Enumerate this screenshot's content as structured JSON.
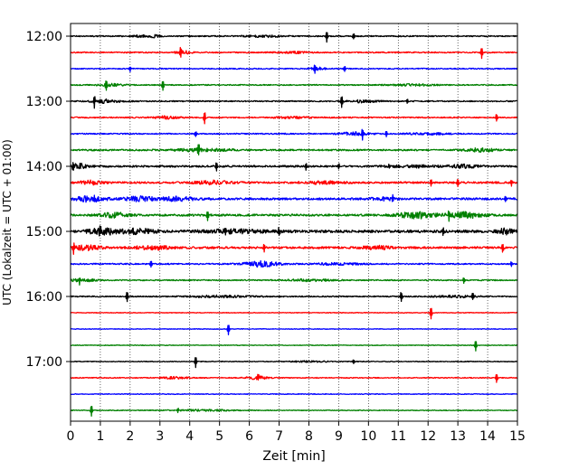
{
  "chart_data": {
    "type": "line",
    "xlabel": "Zeit  [min]",
    "ylabel": "UTC (Lokalzeit = UTC + 01:00)",
    "xlim": [
      0,
      15
    ],
    "x_ticks": [
      0,
      1,
      2,
      3,
      4,
      5,
      6,
      7,
      8,
      9,
      10,
      11,
      12,
      13,
      14,
      15
    ],
    "x_tick_labels": [
      "0",
      "1",
      "2",
      "3",
      "4",
      "5",
      "6",
      "7",
      "8",
      "9",
      "10",
      "11",
      "12",
      "13",
      "14",
      "15"
    ],
    "x_grid": "dotted vertical lines at each minute",
    "y_tick_labels": [
      "12:00",
      "13:00",
      "14:00",
      "15:00",
      "16:00",
      "17:00"
    ],
    "y_tick_rows": [
      0,
      4,
      8,
      12,
      16,
      20
    ],
    "row_interval_minutes": 15,
    "row_colors": [
      "#000000",
      "#ff0000",
      "#0000ff",
      "#008000"
    ],
    "rows": [
      {
        "start": "12:00",
        "color": "#000000",
        "base_noise": 0.2,
        "bursts": [
          [
            2.6,
            0.8,
            0.5
          ],
          [
            6.5,
            1.2,
            0.3
          ]
        ],
        "spikes": [
          [
            8.6,
            0.9
          ],
          [
            9.5,
            0.5
          ]
        ]
      },
      {
        "start": "12:15",
        "color": "#ff0000",
        "base_noise": 0.2,
        "bursts": [
          [
            3.8,
            0.5,
            0.5
          ],
          [
            7.5,
            1.0,
            0.3
          ]
        ],
        "spikes": [
          [
            3.7,
            1.0
          ],
          [
            13.8,
            0.9
          ]
        ]
      },
      {
        "start": "12:30",
        "color": "#0000ff",
        "base_noise": 0.18,
        "bursts": [
          [
            8.3,
            0.6,
            0.4
          ]
        ],
        "spikes": [
          [
            8.2,
            0.9
          ],
          [
            9.2,
            0.5
          ],
          [
            2.0,
            0.4
          ]
        ]
      },
      {
        "start": "12:45",
        "color": "#008000",
        "base_noise": 0.18,
        "bursts": [
          [
            1.4,
            0.8,
            0.4
          ],
          [
            11.5,
            1.5,
            0.3
          ]
        ],
        "spikes": [
          [
            1.2,
            0.7
          ],
          [
            3.1,
            0.8
          ]
        ]
      },
      {
        "start": "13:00",
        "color": "#000000",
        "base_noise": 0.2,
        "bursts": [
          [
            1.2,
            1.0,
            0.6
          ],
          [
            9.8,
            1.0,
            0.4
          ]
        ],
        "spikes": [
          [
            0.8,
            0.9
          ],
          [
            9.1,
            0.9
          ],
          [
            11.3,
            0.4
          ]
        ]
      },
      {
        "start": "13:15",
        "color": "#ff0000",
        "base_noise": 0.2,
        "bursts": [
          [
            3.2,
            0.8,
            0.5
          ],
          [
            7.5,
            1.2,
            0.3
          ]
        ],
        "spikes": [
          [
            4.5,
            1.0
          ],
          [
            14.3,
            0.6
          ]
        ]
      },
      {
        "start": "13:30",
        "color": "#0000ff",
        "base_noise": 0.2,
        "bursts": [
          [
            9.5,
            1.0,
            0.5
          ],
          [
            12.0,
            1.5,
            0.3
          ]
        ],
        "spikes": [
          [
            9.8,
            0.9
          ],
          [
            10.6,
            0.5
          ],
          [
            4.2,
            0.4
          ]
        ]
      },
      {
        "start": "13:45",
        "color": "#008000",
        "base_noise": 0.25,
        "bursts": [
          [
            4.5,
            2.0,
            0.5
          ],
          [
            13.8,
            1.0,
            0.6
          ]
        ],
        "spikes": [
          [
            4.3,
            0.8
          ]
        ]
      },
      {
        "start": "14:00",
        "color": "#000000",
        "base_noise": 0.3,
        "bursts": [
          [
            0.3,
            0.6,
            0.8
          ],
          [
            11.5,
            1.5,
            0.4
          ],
          [
            13.2,
            1.0,
            0.5
          ]
        ],
        "spikes": [
          [
            0.1,
            0.8
          ],
          [
            4.9,
            0.6
          ],
          [
            7.9,
            0.6
          ],
          [
            9.0,
            0.5
          ],
          [
            10.7,
            0.4
          ]
        ]
      },
      {
        "start": "14:15",
        "color": "#ff0000",
        "base_noise": 0.3,
        "bursts": [
          [
            0.7,
            0.8,
            0.6
          ],
          [
            4.8,
            1.2,
            0.6
          ],
          [
            8.5,
            1.5,
            0.4
          ]
        ],
        "spikes": [
          [
            0.8,
            0.7
          ],
          [
            12.1,
            0.5
          ],
          [
            13.0,
            0.6
          ],
          [
            14.8,
            0.6
          ]
        ]
      },
      {
        "start": "14:30",
        "color": "#0000ff",
        "base_noise": 0.35,
        "bursts": [
          [
            0.7,
            0.9,
            1.0
          ],
          [
            2.3,
            1.0,
            0.7
          ],
          [
            3.6,
            1.2,
            0.6
          ],
          [
            10.5,
            0.8,
            0.4
          ]
        ],
        "spikes": [
          [
            10.8,
            0.6
          ],
          [
            14.6,
            0.6
          ]
        ]
      },
      {
        "start": "14:45",
        "color": "#008000",
        "base_noise": 0.35,
        "bursts": [
          [
            1.5,
            1.0,
            0.7
          ],
          [
            11.6,
            1.2,
            1.0
          ],
          [
            13.3,
            1.2,
            0.9
          ]
        ],
        "spikes": [
          [
            4.6,
            0.8
          ],
          [
            12.7,
            0.7
          ]
        ]
      },
      {
        "start": "15:00",
        "color": "#000000",
        "base_noise": 0.45,
        "bursts": [
          [
            1.1,
            1.0,
            1.0
          ],
          [
            2.3,
            1.0,
            0.8
          ],
          [
            5.5,
            2.0,
            0.5
          ],
          [
            14.6,
            0.5,
            0.8
          ]
        ],
        "spikes": [
          [
            1.0,
            1.0
          ],
          [
            5.2,
            0.9
          ],
          [
            7.0,
            0.6
          ],
          [
            12.5,
            0.6
          ]
        ]
      },
      {
        "start": "15:15",
        "color": "#ff0000",
        "base_noise": 0.35,
        "bursts": [
          [
            0.5,
            1.0,
            0.8
          ],
          [
            2.8,
            1.2,
            0.6
          ],
          [
            10.3,
            1.0,
            0.5
          ]
        ],
        "spikes": [
          [
            0.1,
            0.8
          ],
          [
            6.5,
            0.7
          ],
          [
            14.5,
            0.8
          ]
        ]
      },
      {
        "start": "15:30",
        "color": "#0000ff",
        "base_noise": 0.22,
        "bursts": [
          [
            6.4,
            1.2,
            0.9
          ],
          [
            9.0,
            1.5,
            0.3
          ]
        ],
        "spikes": [
          [
            2.7,
            0.5
          ],
          [
            14.8,
            0.4
          ]
        ]
      },
      {
        "start": "15:45",
        "color": "#008000",
        "base_noise": 0.2,
        "bursts": [
          [
            0.4,
            0.8,
            0.5
          ],
          [
            8.0,
            1.5,
            0.3
          ]
        ],
        "spikes": [
          [
            0.3,
            0.7
          ],
          [
            13.2,
            0.4
          ]
        ]
      },
      {
        "start": "16:00",
        "color": "#000000",
        "base_noise": 0.2,
        "bursts": [
          [
            5.0,
            2.0,
            0.3
          ],
          [
            13.0,
            1.5,
            0.3
          ]
        ],
        "spikes": [
          [
            1.9,
            0.8
          ],
          [
            11.1,
            0.8
          ],
          [
            13.5,
            0.5
          ]
        ]
      },
      {
        "start": "16:15",
        "color": "#ff0000",
        "base_noise": 0.1,
        "bursts": [],
        "spikes": [
          [
            12.1,
            1.0
          ]
        ]
      },
      {
        "start": "16:30",
        "color": "#0000ff",
        "base_noise": 0.1,
        "bursts": [],
        "spikes": [
          [
            5.3,
            0.9
          ]
        ]
      },
      {
        "start": "16:45",
        "color": "#008000",
        "base_noise": 0.1,
        "bursts": [],
        "spikes": [
          [
            13.6,
            0.9
          ]
        ]
      },
      {
        "start": "17:00",
        "color": "#000000",
        "base_noise": 0.12,
        "bursts": [
          [
            8.0,
            1.5,
            0.2
          ]
        ],
        "spikes": [
          [
            4.2,
            0.9
          ],
          [
            9.5,
            0.3
          ]
        ]
      },
      {
        "start": "17:15",
        "color": "#ff0000",
        "base_noise": 0.15,
        "bursts": [
          [
            6.3,
            0.8,
            0.5
          ],
          [
            3.5,
            1.0,
            0.3
          ]
        ],
        "spikes": [
          [
            14.3,
            0.7
          ],
          [
            6.3,
            0.5
          ]
        ]
      },
      {
        "start": "17:30",
        "color": "#0000ff",
        "base_noise": 0.12,
        "bursts": [],
        "spikes": []
      },
      {
        "start": "17:45",
        "color": "#008000",
        "base_noise": 0.12,
        "bursts": [
          [
            4.5,
            2.0,
            0.3
          ]
        ],
        "spikes": [
          [
            0.7,
            0.9
          ],
          [
            3.6,
            0.4
          ]
        ]
      }
    ]
  }
}
